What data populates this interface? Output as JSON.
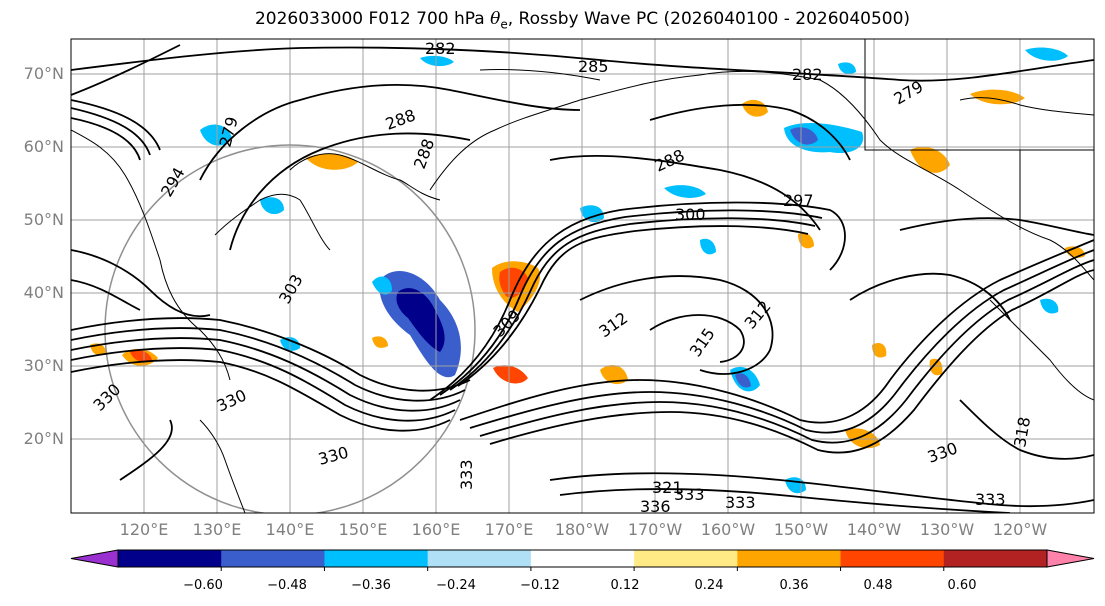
{
  "title": {
    "prefix": "2026033000 F012 700 hPa ",
    "symbol": "θ",
    "subscript": "e",
    "suffix": ", Rossby Wave PC (2026040100 - 2026040500)"
  },
  "map": {
    "lat_labels": [
      "70°N",
      "60°N",
      "50°N",
      "40°N",
      "30°N",
      "20°N"
    ],
    "lon_labels": [
      "120°E",
      "130°E",
      "140°E",
      "150°E",
      "160°E",
      "170°E",
      "180°W",
      "170°W",
      "160°W",
      "150°W",
      "140°W",
      "130°W",
      "120°W"
    ],
    "contour_labels": [
      "282",
      "285",
      "282",
      "279",
      "288",
      "288",
      "294",
      "297",
      "300",
      "303",
      "309",
      "312",
      "315",
      "312",
      "318",
      "321",
      "330",
      "330",
      "330",
      "333",
      "333",
      "333",
      "336",
      "330",
      "333",
      "288",
      "279"
    ]
  },
  "colorbar": {
    "ticks": [
      "−0.60",
      "−0.48",
      "−0.36",
      "−0.24",
      "−0.12",
      "0.12",
      "0.24",
      "0.36",
      "0.48",
      "0.60"
    ],
    "colors": [
      "#9b30d0",
      "#00008b",
      "#3a5fcd",
      "#00bfff",
      "#b0e0f6",
      "#ffffff",
      "#ffea86",
      "#ffa500",
      "#ff4500",
      "#b22222",
      "#ff82ab"
    ]
  }
}
